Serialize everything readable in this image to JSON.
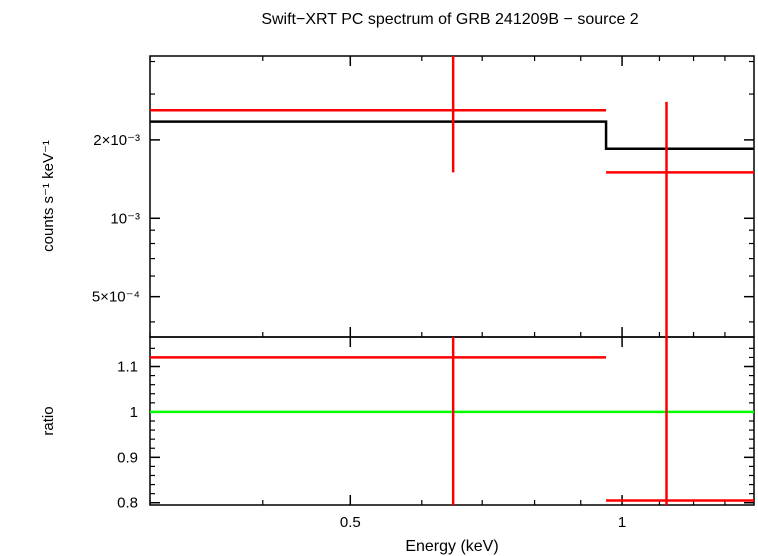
{
  "chart_data": [
    {
      "type": "step",
      "title": "Swift−XRT PC spectrum of GRB 241209B − source 2",
      "ylabel": "counts s⁻¹ keV⁻¹",
      "xscale": "log",
      "yscale": "log",
      "xlim": [
        0.3,
        1.4
      ],
      "ylim": [
        0.00035,
        0.0042
      ],
      "y_ticks": [
        {
          "value": 0.002,
          "label": "2×10⁻³"
        },
        {
          "value": 0.001,
          "label": "10⁻³"
        },
        {
          "value": 0.0005,
          "label": "5×10⁻⁴"
        }
      ],
      "data": {
        "name": "",
        "color": "#ff0000",
        "points": [
          {
            "x": 0.65,
            "x_lo": 0.3,
            "x_hi": 0.96,
            "y": 0.0026,
            "y_lo": 0.0015,
            "y_hi": 0.0042
          },
          {
            "x": 1.12,
            "x_lo": 0.96,
            "x_hi": 1.4,
            "y": 0.0015,
            "y_lo": 0.00035,
            "y_hi": 0.0028
          }
        ]
      },
      "model": {
        "name": "",
        "color": "#000000",
        "steps": [
          {
            "x_lo": 0.3,
            "x_hi": 0.96,
            "y": 0.00235
          },
          {
            "x_lo": 0.96,
            "x_hi": 1.4,
            "y": 0.00185
          }
        ]
      }
    },
    {
      "type": "scatter",
      "xlabel": "Energy (keV)",
      "ylabel": "ratio",
      "xscale": "log",
      "xlim": [
        0.3,
        1.4
      ],
      "ylim": [
        0.795,
        1.165
      ],
      "x_ticks": [
        {
          "value": 0.5,
          "label": "0.5"
        },
        {
          "value": 1,
          "label": "1"
        }
      ],
      "y_ticks": [
        {
          "value": 0.8,
          "label": "0.8"
        },
        {
          "value": 0.9,
          "label": "0.9"
        },
        {
          "value": 1,
          "label": "1"
        },
        {
          "value": 1.1,
          "label": "1.1"
        }
      ],
      "reference_line": {
        "y": 1,
        "color": "#00ff00"
      },
      "data": {
        "name": "",
        "color": "#ff0000",
        "points": [
          {
            "x": 0.65,
            "x_lo": 0.3,
            "x_hi": 0.96,
            "y": 1.12,
            "y_lo": 0.795,
            "y_hi": 1.165
          },
          {
            "x": 1.12,
            "x_lo": 0.96,
            "x_hi": 1.4,
            "y": 0.805,
            "y_lo": 0.795,
            "y_hi": 1.165
          }
        ]
      }
    }
  ]
}
